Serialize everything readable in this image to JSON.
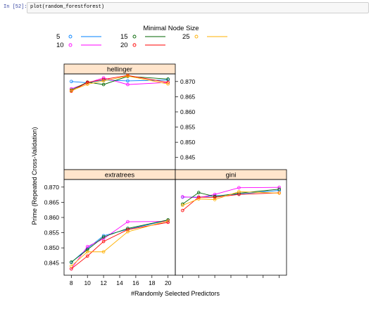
{
  "cell": {
    "prompt": "In [52]:",
    "code": "plot(random_forestforest)"
  },
  "chart_data": {
    "type": "line",
    "xlabel": "#Randomly Selected Predictors",
    "ylabel": "Prime (Repeated Cross-Validation)",
    "ylim": [
      0.841,
      0.8725
    ],
    "x_ticks": [
      8,
      10,
      12,
      14,
      16,
      18,
      20
    ],
    "y_ticks": [
      0.845,
      0.85,
      0.855,
      0.86,
      0.865,
      0.87
    ],
    "y_tick_labels": [
      "0.845",
      "0.850",
      "0.855",
      "0.860",
      "0.865",
      "0.870"
    ],
    "legend": {
      "title": "Minimal Node Size",
      "placement": "top",
      "entries": [
        {
          "name": "5",
          "color": "#0080ff"
        },
        {
          "name": "10",
          "color": "#ff00ff"
        },
        {
          "name": "15",
          "color": "#006400"
        },
        {
          "name": "20",
          "color": "#ff0000"
        },
        {
          "name": "25",
          "color": "#ffb000"
        }
      ]
    },
    "panels": [
      {
        "title": "hellinger",
        "x": [
          8,
          10,
          12,
          15,
          20
        ],
        "series": [
          {
            "name": "5",
            "color": "#0080ff",
            "values": [
              0.87,
              0.8696,
              0.8705,
              0.8702,
              0.8705
            ]
          },
          {
            "name": "10",
            "color": "#ff00ff",
            "values": [
              0.8676,
              0.8695,
              0.8712,
              0.869,
              0.8697
            ]
          },
          {
            "name": "15",
            "color": "#006400",
            "values": [
              0.8672,
              0.8698,
              0.869,
              0.8717,
              0.8708
            ]
          },
          {
            "name": "20",
            "color": "#ff0000",
            "values": [
              0.8668,
              0.8697,
              0.8707,
              0.872,
              0.8697
            ]
          },
          {
            "name": "25",
            "color": "#ffb000",
            "values": [
              0.867,
              0.8691,
              0.8702,
              0.8718,
              0.8692
            ]
          }
        ]
      },
      {
        "title": "extratrees",
        "x": [
          8,
          10,
          12,
          15,
          20
        ],
        "series": [
          {
            "name": "5",
            "color": "#0080ff",
            "values": [
              0.8452,
              0.8498,
              0.854,
              0.8561,
              0.8591
            ]
          },
          {
            "name": "10",
            "color": "#ff00ff",
            "values": [
              0.8431,
              0.8504,
              0.853,
              0.8586,
              0.8587
            ]
          },
          {
            "name": "15",
            "color": "#006400",
            "values": [
              0.8453,
              0.8494,
              0.8536,
              0.8564,
              0.8592
            ]
          },
          {
            "name": "20",
            "color": "#ff0000",
            "values": [
              0.8431,
              0.8473,
              0.8521,
              0.856,
              0.8584
            ]
          },
          {
            "name": "25",
            "color": "#ffb000",
            "values": [
              0.844,
              0.8487,
              0.8487,
              0.8553,
              0.8589
            ]
          }
        ]
      },
      {
        "title": "gini",
        "x": [
          8,
          10,
          12,
          15,
          20
        ],
        "series": [
          {
            "name": "5",
            "color": "#0080ff",
            "values": [
              0.8667,
              0.8667,
              0.8671,
              0.8677,
              0.8689
            ]
          },
          {
            "name": "10",
            "color": "#ff00ff",
            "values": [
              0.8668,
              0.8665,
              0.8676,
              0.8698,
              0.8699
            ]
          },
          {
            "name": "15",
            "color": "#006400",
            "values": [
              0.8644,
              0.8682,
              0.8669,
              0.868,
              0.8693
            ]
          },
          {
            "name": "20",
            "color": "#ff0000",
            "values": [
              0.8623,
              0.8667,
              0.8666,
              0.8676,
              0.8681
            ]
          },
          {
            "name": "25",
            "color": "#ffb000",
            "values": [
              0.864,
              0.8661,
              0.8659,
              0.8685,
              0.868
            ]
          }
        ]
      }
    ]
  }
}
